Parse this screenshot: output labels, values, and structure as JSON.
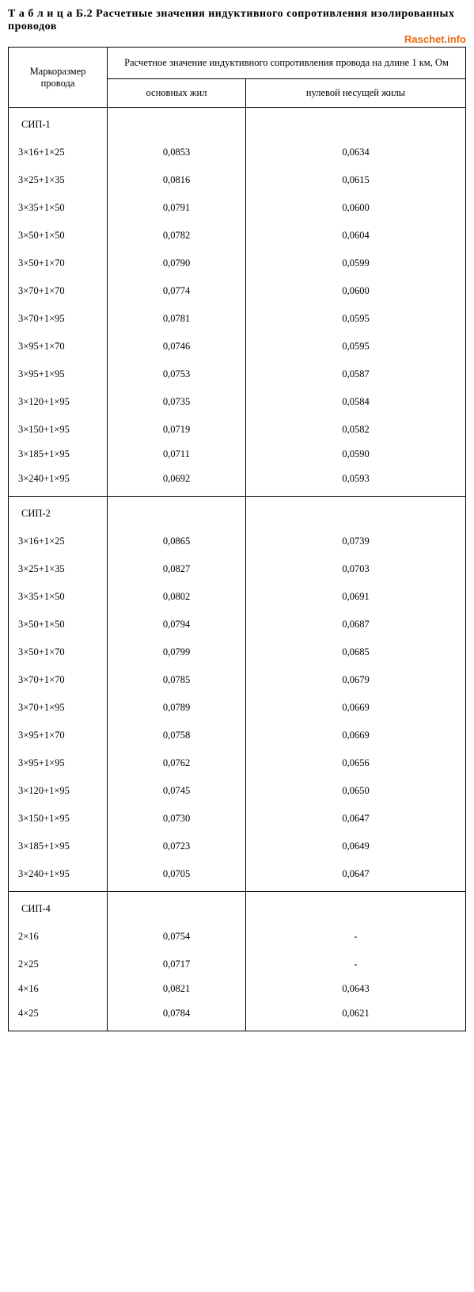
{
  "title_prefix": "Т а б л и ц а",
  "title_rest": " Б.2 Расчетные значения индуктивного сопротивления изолированных проводов",
  "watermark": "Raschet.info",
  "headers": {
    "rowspan_left": "Маркоразмер провода",
    "colspan_top": "Расчетное значение индуктивного сопротивления провода на длине 1 км, Ом",
    "sub_main": "основных жил",
    "sub_null": "нулевой несущей жилы"
  },
  "sections": [
    {
      "name": "СИП-1",
      "rows": [
        {
          "size": "3×16+1×25",
          "main": "0,0853",
          "null": "0,0634"
        },
        {
          "size": "3×25+1×35",
          "main": "0,0816",
          "null": "0,0615"
        },
        {
          "size": "3×35+1×50",
          "main": "0,0791",
          "null": "0,0600"
        },
        {
          "size": "3×50+1×50",
          "main": "0,0782",
          "null": "0,0604"
        },
        {
          "size": "3×50+1×70",
          "main": "0,0790",
          "null": "0,0599"
        },
        {
          "size": "3×70+1×70",
          "main": "0,0774",
          "null": "0,0600"
        },
        {
          "size": "3×70+1×95",
          "main": "0,0781",
          "null": "0,0595"
        },
        {
          "size": "3×95+1×70",
          "main": "0,0746",
          "null": "0,0595"
        },
        {
          "size": "3×95+1×95",
          "main": "0,0753",
          "null": "0,0587"
        },
        {
          "size": "3×120+1×95",
          "main": "0,0735",
          "null": "0,0584"
        },
        {
          "size": "3×150+1×95",
          "main": "0,0719",
          "null": "0,0582"
        },
        {
          "size": "3×185+1×95",
          "main": "0,0711",
          "null": "0,0590",
          "tight": true
        },
        {
          "size": "3×240+1×95",
          "main": "0,0692",
          "null": "0,0593"
        }
      ]
    },
    {
      "name": "СИП-2",
      "rows": [
        {
          "size": "3×16+1×25",
          "main": "0,0865",
          "null": "0,0739"
        },
        {
          "size": "3×25+1×35",
          "main": "0,0827",
          "null": "0,0703"
        },
        {
          "size": "3×35+1×50",
          "main": "0,0802",
          "null": "0,0691"
        },
        {
          "size": "3×50+1×50",
          "main": "0,0794",
          "null": "0,0687"
        },
        {
          "size": "3×50+1×70",
          "main": "0,0799",
          "null": "0,0685"
        },
        {
          "size": "3×70+1×70",
          "main": "0,0785",
          "null": "0,0679"
        },
        {
          "size": "3×70+1×95",
          "main": "0,0789",
          "null": "0,0669"
        },
        {
          "size": "3×95+1×70",
          "main": "0,0758",
          "null": "0,0669"
        },
        {
          "size": "3×95+1×95",
          "main": "0,0762",
          "null": "0,0656"
        },
        {
          "size": "3×120+1×95",
          "main": "0,0745",
          "null": "0,0650"
        },
        {
          "size": "3×150+1×95",
          "main": "0,0730",
          "null": "0,0647"
        },
        {
          "size": "3×185+1×95",
          "main": "0,0723",
          "null": "0,0649"
        },
        {
          "size": "3×240+1×95",
          "main": "0,0705",
          "null": "0,0647"
        }
      ]
    },
    {
      "name": "СИП-4",
      "rows": [
        {
          "size": "2×16",
          "main": "0,0754",
          "null": "-"
        },
        {
          "size": "2×25",
          "main": "0,0717",
          "null": "-"
        },
        {
          "size": "4×16",
          "main": "0,0821",
          "null": "0,0643",
          "tight": true
        },
        {
          "size": "4×25",
          "main": "0,0784",
          "null": "0,0621"
        }
      ]
    }
  ]
}
